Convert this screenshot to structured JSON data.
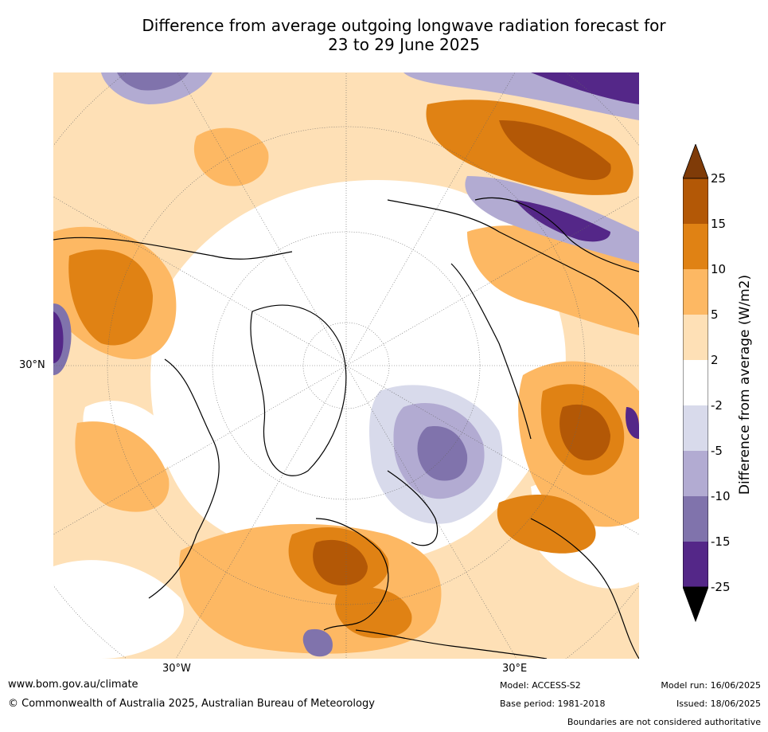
{
  "title": {
    "line1": "Difference from average outgoing longwave radiation forecast for",
    "line2": "23 to 29 June 2025"
  },
  "map_labels": {
    "lat": "30°N",
    "lon_west": "30°W",
    "lon_east": "30°E"
  },
  "colorbar": {
    "label": "Difference from average (W/m2)",
    "ticks": [
      "25",
      "15",
      "10",
      "5",
      "2",
      "-2",
      "-5",
      "-10",
      "-15",
      "-25"
    ],
    "colors": {
      "above_25": "#7f3b08",
      "15_to_25": "#b35806",
      "10_to_15": "#e08214",
      "5_to_10": "#fdb863",
      "2_to_5": "#fee0b6",
      "neutral": "#ffffff",
      "-5_to_-2": "#d8daeb",
      "-10_to_-5": "#b2abd2",
      "-15_to_-10": "#8073ac",
      "-25_to_-15": "#542788",
      "below_-25": "#2d004b"
    }
  },
  "footer": {
    "url": "www.bom.gov.au/climate",
    "copyright": "© Commonwealth of Australia 2025, Australian Bureau of Meteorology",
    "model": "Model: ACCESS-S2",
    "base_period": "Base period: 1981-2018",
    "model_run": "Model run: 16/06/2025",
    "issued": "Issued: 18/06/2025",
    "disclaimer": "Boundaries are not considered authoritative"
  }
}
